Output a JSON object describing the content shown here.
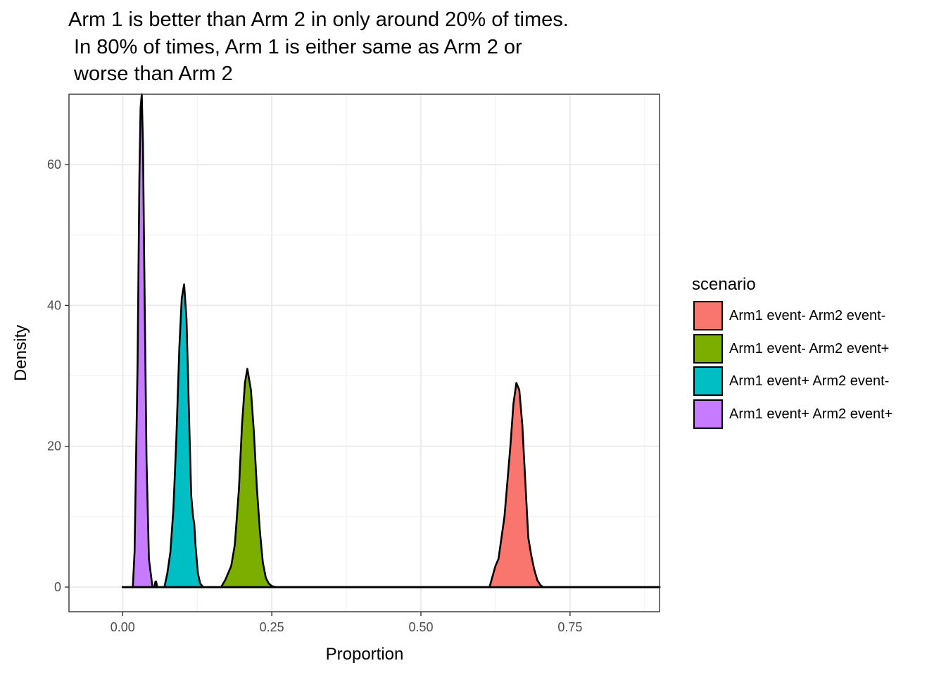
{
  "chart_data": {
    "type": "area",
    "title_lines": [
      "Arm 1 is better than Arm 2 in only around 20% of times.",
      " In 80% of times, Arm 1 is either same as Arm 2 or",
      " worse than Arm 2"
    ],
    "xlabel": "Proportion",
    "ylabel": "Density",
    "xlim": [
      -0.09,
      0.9
    ],
    "ylim": [
      -3.5,
      70
    ],
    "xticks": [
      0.0,
      0.25,
      0.5,
      0.75
    ],
    "xtick_labels": [
      "0.00",
      "0.25",
      "0.50",
      "0.75"
    ],
    "yticks": [
      0,
      20,
      40,
      60
    ],
    "ytick_labels": [
      "0",
      "20",
      "40",
      "60"
    ],
    "grid": true,
    "legend": {
      "title": "scenario",
      "position": "right",
      "entries": [
        {
          "label": "Arm1 event- Arm2 event-",
          "color": "#F8766D"
        },
        {
          "label": "Arm1 event- Arm2 event+",
          "color": "#7CAE00"
        },
        {
          "label": "Arm1 event+ Arm2 event-",
          "color": "#00BFC4"
        },
        {
          "label": "Arm1 event+ Arm2 event+",
          "color": "#C77CFF"
        }
      ]
    },
    "series": [
      {
        "name": "Arm1 event+ Arm2 event+",
        "color": "#C77CFF",
        "x": [
          0.0,
          0.017,
          0.02,
          0.025,
          0.028,
          0.03,
          0.032,
          0.034,
          0.037,
          0.04,
          0.044,
          0.05,
          0.053,
          0.055,
          0.056,
          0.058,
          0.06,
          0.9
        ],
        "y": [
          0,
          0,
          5,
          32,
          58,
          68,
          70,
          63,
          40,
          18,
          4,
          0,
          0,
          0.8,
          0.8,
          0,
          0,
          0
        ]
      },
      {
        "name": "Arm1 event+ Arm2 event-",
        "color": "#00BFC4",
        "x": [
          0.0,
          0.07,
          0.075,
          0.08,
          0.085,
          0.09,
          0.095,
          0.099,
          0.103,
          0.107,
          0.112,
          0.115,
          0.118,
          0.12,
          0.122,
          0.126,
          0.13,
          0.135,
          0.9
        ],
        "y": [
          0,
          0,
          2,
          5,
          11,
          21,
          34,
          41,
          43,
          38,
          22,
          13,
          10,
          9,
          6,
          2,
          0.5,
          0,
          0
        ]
      },
      {
        "name": "Arm1 event- Arm2 event+",
        "color": "#7CAE00",
        "x": [
          0.0,
          0.165,
          0.172,
          0.177,
          0.182,
          0.188,
          0.195,
          0.2,
          0.205,
          0.209,
          0.215,
          0.22,
          0.225,
          0.23,
          0.235,
          0.24,
          0.245,
          0.25,
          0.258,
          0.9
        ],
        "y": [
          0,
          0,
          1,
          2,
          3,
          6,
          14,
          23,
          29,
          31,
          28,
          22,
          14,
          8,
          3.5,
          1.3,
          0.5,
          0.15,
          0,
          0
        ]
      },
      {
        "name": "Arm1 event- Arm2 event-",
        "color": "#F8766D",
        "x": [
          0.0,
          0.615,
          0.62,
          0.625,
          0.63,
          0.64,
          0.65,
          0.655,
          0.66,
          0.665,
          0.67,
          0.675,
          0.68,
          0.685,
          0.69,
          0.695,
          0.7,
          0.705,
          0.9
        ],
        "y": [
          0,
          0,
          1.5,
          3,
          4,
          10,
          20,
          26,
          29,
          28,
          23,
          15,
          7,
          4.5,
          2.5,
          1,
          0.3,
          0,
          0
        ]
      }
    ]
  }
}
